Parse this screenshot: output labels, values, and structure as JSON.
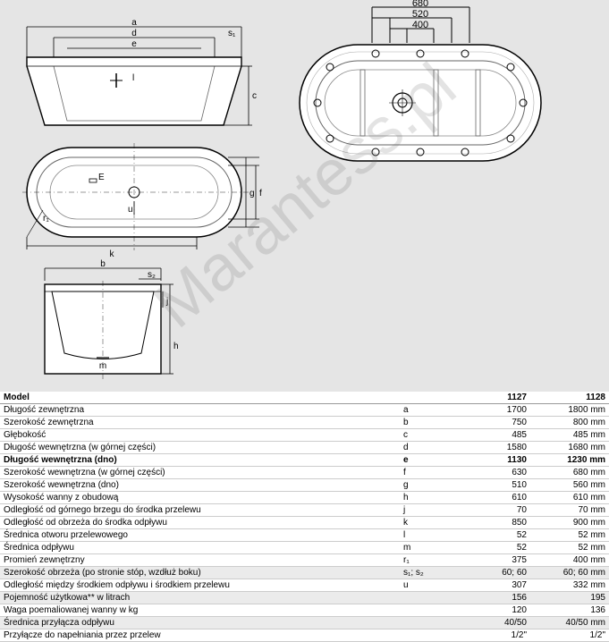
{
  "watermark": "Marantess.pl",
  "diagram": {
    "top_labels": {
      "w1": "680",
      "w2": "520",
      "w3": "400"
    },
    "letters": {
      "a": "a",
      "d": "d",
      "e": "e",
      "s1": "s₁",
      "l": "l",
      "c": "c",
      "E": "E",
      "f": "f",
      "g": "g",
      "u": "u",
      "r1": "r₁",
      "k": "k",
      "b": "b",
      "s2": "s₂",
      "j": "j",
      "h": "h",
      "m": "m"
    }
  },
  "table": {
    "header": {
      "model": "Model",
      "c1": "1127",
      "c2": "1128"
    },
    "rows": [
      {
        "label": "Długość zewnętrzna",
        "sym": "a",
        "v1": "1700",
        "v2": "1800 mm"
      },
      {
        "label": "Szerokość zewnętrzna",
        "sym": "b",
        "v1": "750",
        "v2": "800 mm"
      },
      {
        "label": "Głębokość",
        "sym": "c",
        "v1": "485",
        "v2": "485 mm"
      },
      {
        "label": "Długość wewnętrzna (w górnej części)",
        "sym": "d",
        "v1": "1580",
        "v2": "1680 mm"
      },
      {
        "label": "Długość wewnętrzna (dno)",
        "sym": "e",
        "v1": "1130",
        "v2": "1230 mm",
        "bold": true
      },
      {
        "label": "Szerokość wewnętrzna (w górnej części)",
        "sym": "f",
        "v1": "630",
        "v2": "680 mm"
      },
      {
        "label": "Szerokość wewnętrzna (dno)",
        "sym": "g",
        "v1": "510",
        "v2": "560 mm"
      },
      {
        "label": "Wysokość wanny z obudową",
        "sym": "h",
        "v1": "610",
        "v2": "610 mm"
      },
      {
        "label": "Odległość od górnego brzegu do środka przelewu",
        "sym": "j",
        "v1": "70",
        "v2": "70 mm"
      },
      {
        "label": "Odległość od obrzeża do środka odpływu",
        "sym": "k",
        "v1": "850",
        "v2": "900 mm"
      },
      {
        "label": "Średnica otworu przelewowego",
        "sym": "l",
        "v1": "52",
        "v2": "52 mm"
      },
      {
        "label": "Średnica odpływu",
        "sym": "m",
        "v1": "52",
        "v2": "52 mm"
      },
      {
        "label": "Promień zewnętrzny",
        "sym": "r₁",
        "v1": "375",
        "v2": "400 mm"
      },
      {
        "label": "Szerokość obrzeża (po stronie stóp, wzdłuż boku)",
        "sym": "s₁; s₂",
        "v1": "60; 60",
        "v2": "60; 60 mm",
        "shade": true
      },
      {
        "label": "Odległość między środkiem odpływu i środkiem przelewu",
        "sym": "u",
        "v1": "307",
        "v2": "332 mm"
      },
      {
        "label": "Pojemność użytkowa** w litrach",
        "sym": "",
        "v1": "156",
        "v2": "195",
        "shade": true
      },
      {
        "label": "Waga poemaliowanej wanny w kg",
        "sym": "",
        "v1": "120",
        "v2": "136"
      },
      {
        "label": "Średnica przyłącza odpływu",
        "sym": "",
        "v1": "40/50",
        "v2": "40/50 mm",
        "shade": true
      },
      {
        "label": "Przyłącze do napełniania przez przelew",
        "sym": "",
        "v1": "1/2\"",
        "v2": "1/2\""
      }
    ]
  }
}
